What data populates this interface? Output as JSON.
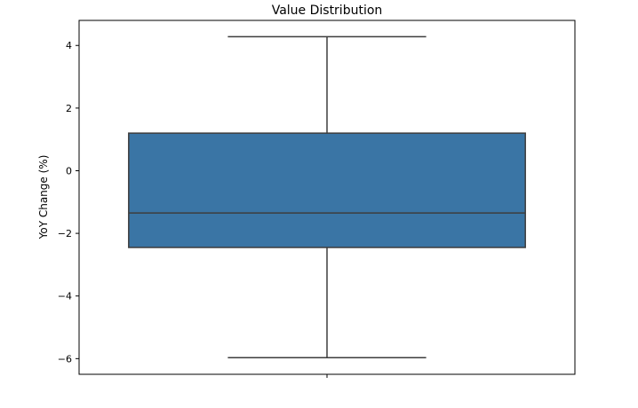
{
  "chart_data": {
    "type": "box",
    "title": "Value Distribution",
    "xlabel": "",
    "ylabel": "YoY Change (%)",
    "ylim": [
      -6.5,
      4.8
    ],
    "yticks": [
      4,
      2,
      0,
      -2,
      -4,
      -6
    ],
    "ytick_labels": [
      "4",
      "2",
      "0",
      "−2",
      "−4",
      "−6"
    ],
    "grid": false,
    "series": [
      {
        "whisker_low": -5.97,
        "q1": -2.45,
        "median": -1.35,
        "q3": 1.2,
        "whisker_high": 4.28,
        "color": "#3a75a5",
        "edge_color": "#3d3d3d"
      }
    ]
  }
}
